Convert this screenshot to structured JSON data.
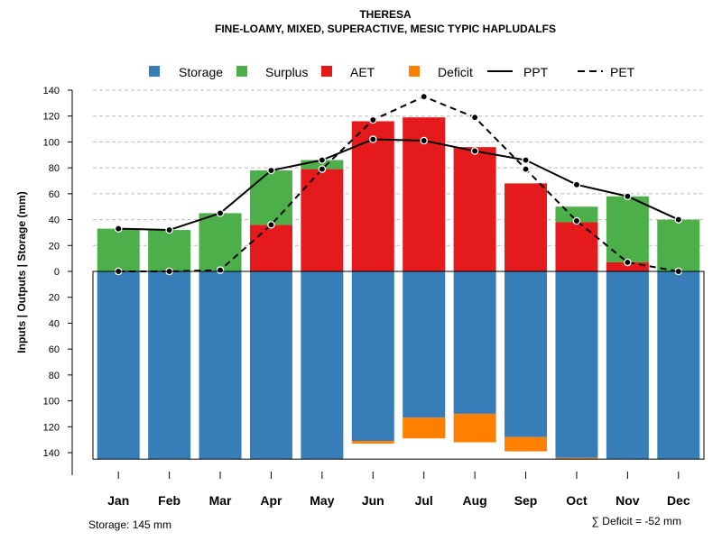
{
  "chart_data": {
    "type": "bar",
    "title": "THERESA",
    "subtitle": "FINE-LOAMY, MIXED, SUPERACTIVE, MESIC TYPIC HAPLUDALFS",
    "ylabel": "Inputs | Outputs | Storage    (mm)",
    "ylim": [
      -145,
      140
    ],
    "y_ticks": [
      140,
      120,
      100,
      80,
      60,
      40,
      20,
      0,
      -20,
      -40,
      -60,
      -80,
      -100,
      -120,
      -140
    ],
    "y_tick_labels": [
      "140",
      "120",
      "100",
      "80",
      "60",
      "40",
      "20",
      "0",
      "20",
      "40",
      "60",
      "80",
      "100",
      "120",
      "140"
    ],
    "grid": true,
    "legend_position": "top",
    "categories": [
      "Jan",
      "Feb",
      "Mar",
      "Apr",
      "May",
      "Jun",
      "Jul",
      "Aug",
      "Sep",
      "Oct",
      "Nov",
      "Dec"
    ],
    "series": [
      {
        "name": "Storage",
        "kind": "bar",
        "color": "#377EB8",
        "values": [
          -145,
          -145,
          -145,
          -145,
          -145,
          -131,
          -113,
          -110,
          -128,
          -144,
          -145,
          -145
        ]
      },
      {
        "name": "Surplus",
        "kind": "bar",
        "color": "#4DAF4A",
        "values": [
          33,
          32,
          45,
          42,
          7,
          0,
          0,
          0,
          0,
          12,
          51,
          40
        ]
      },
      {
        "name": "AET",
        "kind": "bar",
        "color": "#E41A1C",
        "values": [
          0,
          0,
          0,
          36,
          79,
          116,
          119,
          96,
          68,
          38,
          7,
          0
        ]
      },
      {
        "name": "Deficit",
        "kind": "bar",
        "color": "#FF7F00",
        "values": [
          0,
          0,
          0,
          0,
          0,
          -2,
          -16,
          -22,
          -11,
          -1,
          0,
          0
        ]
      },
      {
        "name": "PPT",
        "kind": "line",
        "style": "solid",
        "color": "#000000",
        "values": [
          33,
          32,
          45,
          78,
          86,
          102,
          101,
          93,
          86,
          67,
          58,
          40
        ]
      },
      {
        "name": "PET",
        "kind": "line",
        "style": "dashed",
        "color": "#000000",
        "values": [
          0,
          0,
          1,
          36,
          79,
          117,
          135,
          119,
          79,
          39,
          7,
          0
        ]
      }
    ],
    "footer_left": "Storage: 145 mm",
    "footer_right": "∑ Deficit = -52 mm"
  }
}
